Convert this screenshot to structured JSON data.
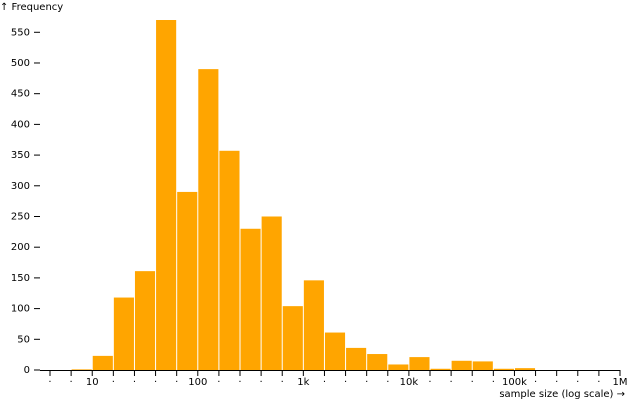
{
  "chart_data": {
    "type": "histogram",
    "y_label": "↑ Frequency",
    "x_label": "sample size (log scale) →",
    "x_scale": "log",
    "color": "#ffa500",
    "bins": [
      6.31,
      10,
      15.85,
      25.12,
      39.81,
      63.1,
      100,
      158.5,
      251.2,
      398.1,
      631,
      1000,
      1585,
      2512,
      3981,
      6310,
      10000,
      15849,
      25119,
      39811,
      63096,
      100000,
      158489
    ],
    "values": [
      1,
      23,
      118,
      161,
      570,
      290,
      490,
      357,
      230,
      250,
      104,
      146,
      61,
      36,
      26,
      9,
      21,
      2,
      15,
      14,
      2,
      3
    ],
    "xlim": [
      3.2,
      1000000
    ],
    "ylim": [
      0,
      570
    ],
    "yticks": [
      0,
      50,
      100,
      150,
      200,
      250,
      300,
      350,
      400,
      450,
      500,
      550
    ],
    "xticks": [
      {
        "value": 3.98,
        "label": "·"
      },
      {
        "value": 6.31,
        "label": "·"
      },
      10,
      {
        "value": 15.85,
        "label": "·"
      },
      {
        "value": 25.12,
        "label": "·"
      },
      {
        "value": 39.81,
        "label": "·"
      },
      {
        "value": 63.1,
        "label": "·"
      },
      100,
      {
        "value": 158.5,
        "label": "·"
      },
      {
        "value": 251.2,
        "label": "·"
      },
      {
        "value": 398.1,
        "label": "·"
      },
      {
        "value": 631,
        "label": "·"
      },
      {
        "value": 1000,
        "label": "1k"
      },
      {
        "value": 1585,
        "label": "·"
      },
      {
        "value": 2512,
        "label": "·"
      },
      {
        "value": 3981,
        "label": "·"
      },
      {
        "value": 6310,
        "label": "·"
      },
      {
        "value": 10000,
        "label": "10k"
      },
      {
        "value": 15849,
        "label": "·"
      },
      {
        "value": 25119,
        "label": "·"
      },
      {
        "value": 39811,
        "label": "·"
      },
      {
        "value": 63096,
        "label": "·"
      },
      {
        "value": 100000,
        "label": "100k"
      },
      {
        "value": 158489,
        "label": "·"
      },
      {
        "value": 251189,
        "label": "·"
      },
      {
        "value": 398107,
        "label": "·"
      },
      {
        "value": 630957,
        "label": "·"
      },
      {
        "value": 1000000,
        "label": "1M"
      }
    ]
  }
}
